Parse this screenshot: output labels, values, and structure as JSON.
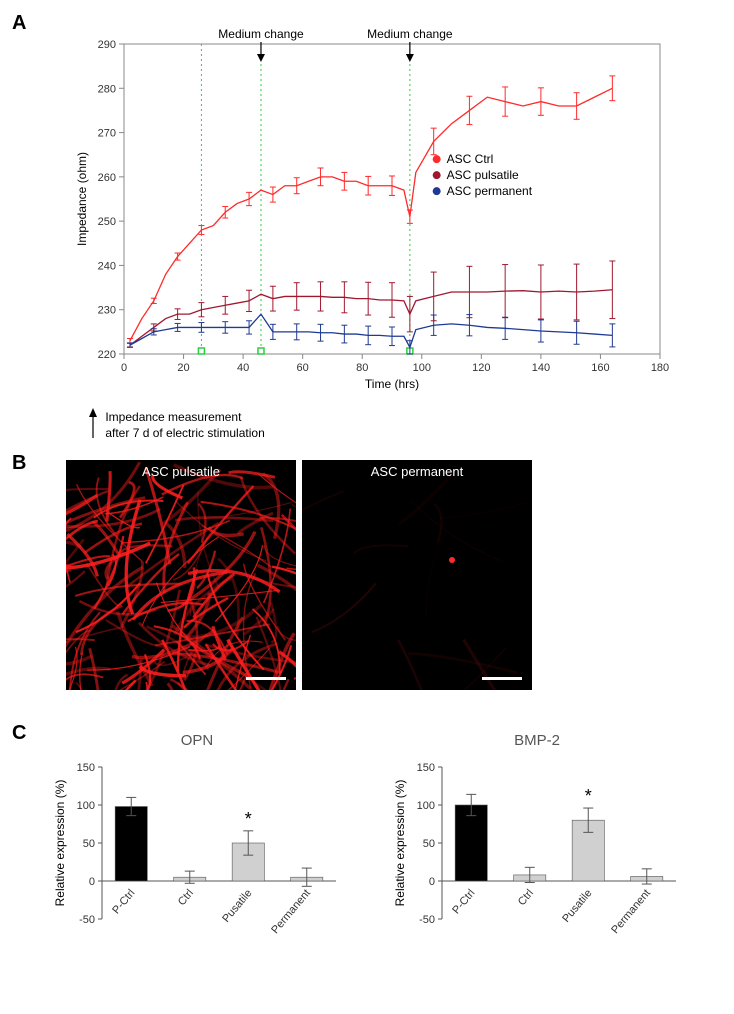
{
  "panelA": {
    "chart": {
      "type": "line",
      "xlabel": "Time (hrs)",
      "ylabel": "Impedance (ohm)",
      "xlim": [
        0,
        180
      ],
      "ylim": [
        220,
        290
      ],
      "xtick_step": 20,
      "ytick_step": 10,
      "label_fontsize": 12,
      "tick_fontsize": 11,
      "medium_change_times": [
        46,
        96
      ],
      "green_dotted_x": [
        26,
        46,
        96
      ],
      "green_markers_x": [
        26,
        46,
        96
      ],
      "medium_change_label": "Medium change",
      "line_width": 1.3,
      "errorbar_width": 1,
      "errorcap_width": 3,
      "plot_border_color": "#888888",
      "green": "#2ecc40",
      "series": [
        {
          "name": "ASC Ctrl",
          "color": "#ff2a2a",
          "t": [
            2,
            6,
            10,
            14,
            18,
            22,
            26,
            30,
            34,
            38,
            42,
            46,
            50,
            54,
            58,
            62,
            66,
            70,
            74,
            78,
            82,
            86,
            90,
            94,
            96,
            98,
            104,
            110,
            116,
            122,
            128,
            134,
            140,
            146,
            152,
            158,
            164
          ],
          "y": [
            223,
            228,
            232,
            238,
            242,
            245,
            248,
            249,
            252,
            254,
            255,
            257,
            256,
            258,
            258,
            259,
            260,
            260,
            259,
            259,
            258,
            258,
            258,
            257,
            251,
            261,
            268,
            272,
            275,
            278,
            277,
            276,
            277,
            276,
            276,
            278,
            280
          ],
          "err": [
            0.5,
            0.5,
            0.6,
            0.7,
            0.8,
            0.9,
            1.0,
            1.1,
            1.3,
            1.4,
            1.5,
            1.6,
            1.7,
            1.8,
            1.8,
            1.9,
            2.0,
            2.0,
            2.0,
            2.1,
            2.1,
            2.2,
            2.2,
            2.2,
            1.5,
            2.5,
            3.0,
            3.1,
            3.2,
            3.3,
            3.3,
            3.2,
            3.1,
            3.1,
            3.0,
            2.9,
            2.8
          ]
        },
        {
          "name": "ASC pulsatile",
          "color": "#a01830",
          "t": [
            2,
            6,
            10,
            14,
            18,
            22,
            26,
            30,
            34,
            38,
            42,
            46,
            50,
            54,
            58,
            62,
            66,
            70,
            74,
            78,
            82,
            86,
            90,
            94,
            96,
            98,
            104,
            110,
            116,
            122,
            128,
            134,
            140,
            146,
            152,
            158,
            164
          ],
          "y": [
            222,
            224,
            226,
            228,
            229,
            229,
            230,
            230.5,
            231,
            231.5,
            232,
            233.5,
            232.5,
            233,
            233,
            233,
            233,
            232.8,
            232.8,
            232.5,
            232.5,
            232.2,
            232.2,
            232,
            229,
            232,
            233,
            234,
            234,
            234,
            234.2,
            234.3,
            234,
            234.2,
            234,
            234.2,
            234.5
          ],
          "err": [
            0.4,
            0.6,
            0.8,
            1.0,
            1.2,
            1.4,
            1.6,
            1.8,
            2.0,
            2.2,
            2.4,
            2.6,
            2.8,
            3.0,
            3.1,
            3.2,
            3.3,
            3.4,
            3.5,
            3.6,
            3.7,
            3.8,
            3.9,
            4.0,
            4.0,
            5.2,
            5.5,
            5.7,
            5.8,
            6.0,
            6.0,
            6.1,
            6.1,
            6.2,
            6.3,
            6.4,
            6.5
          ]
        },
        {
          "name": "ASC permanent",
          "color": "#1f3a93",
          "t": [
            2,
            6,
            10,
            14,
            18,
            22,
            26,
            30,
            34,
            38,
            42,
            46,
            50,
            54,
            58,
            62,
            66,
            70,
            74,
            78,
            82,
            86,
            90,
            94,
            96,
            98,
            104,
            110,
            116,
            122,
            128,
            134,
            140,
            146,
            152,
            158,
            164
          ],
          "y": [
            222,
            223.5,
            225,
            225.5,
            226,
            226,
            226,
            226,
            226,
            226,
            226,
            229,
            225,
            225,
            225,
            225,
            224.8,
            224.8,
            224.5,
            224.5,
            224.2,
            224.2,
            224,
            224,
            221.5,
            225.5,
            226.5,
            226.8,
            226.5,
            226,
            225.8,
            225.5,
            225.2,
            225,
            224.8,
            224.5,
            224.2
          ],
          "err": [
            0.5,
            0.6,
            0.7,
            0.8,
            0.9,
            1.0,
            1.1,
            1.2,
            1.3,
            1.4,
            1.5,
            1.6,
            1.7,
            1.8,
            1.8,
            1.9,
            1.9,
            2.0,
            2.0,
            2.0,
            2.1,
            2.1,
            2.1,
            2.2,
            1.5,
            2.2,
            2.3,
            2.3,
            2.4,
            2.4,
            2.5,
            2.5,
            2.5,
            2.6,
            2.6,
            2.6,
            2.6
          ]
        }
      ]
    },
    "footnote_line1": "Impedance measurement",
    "footnote_line2": "after 7 d of electric stimulation",
    "legend": {
      "entries": [
        {
          "label": "ASC Ctrl",
          "color": "#ff2a2a"
        },
        {
          "label": "ASC pulsatile",
          "color": "#a01830"
        },
        {
          "label": "ASC permanent",
          "color": "#1f3a93"
        }
      ]
    }
  },
  "panelB": {
    "images": [
      {
        "label": "ASC pulsatile",
        "intensity": "high"
      },
      {
        "label": "ASC permanent",
        "intensity": "low"
      }
    ]
  },
  "panelC": {
    "ylabel": "Relative expression (%)",
    "ylim": [
      -50,
      150
    ],
    "ytick_step": 50,
    "categories": [
      "P-Ctrl",
      "Ctrl",
      "Pusatile",
      "Permanent"
    ],
    "label_rotation_deg": -50,
    "bar_width": 0.55,
    "label_fontsize": 12,
    "tick_fontsize": 11,
    "title_fontsize": 15,
    "charts": [
      {
        "title": "OPN",
        "values": [
          98,
          5,
          50,
          5
        ],
        "err": [
          12,
          8,
          16,
          12
        ],
        "colors": [
          "#000000",
          "#d0d0d0",
          "#d0d0d0",
          "#d0d0d0"
        ],
        "sig_marks": {
          "2": "*"
        }
      },
      {
        "title": "BMP-2",
        "values": [
          100,
          8,
          80,
          6
        ],
        "err": [
          14,
          10,
          16,
          10
        ],
        "colors": [
          "#000000",
          "#d0d0d0",
          "#d0d0d0",
          "#d0d0d0"
        ],
        "sig_marks": {
          "2": "*"
        }
      }
    ]
  },
  "labels": {
    "A": "A",
    "B": "B",
    "C": "C"
  }
}
